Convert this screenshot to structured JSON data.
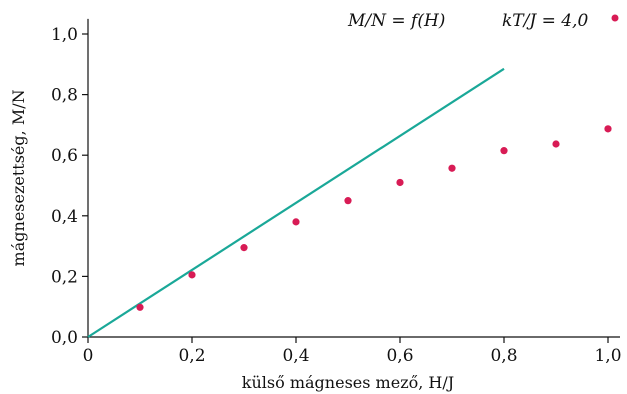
{
  "chart_data": {
    "type": "scatter",
    "xlabel": "külső mágneses mező, H/J",
    "ylabel": "mágnesezettség, M/N",
    "xlim": [
      0,
      1.0
    ],
    "ylim": [
      0,
      1.05
    ],
    "x_ticks": [
      "0",
      "0,2",
      "0,4",
      "0,6",
      "0,8",
      "1,0"
    ],
    "x_tick_values": [
      0,
      0.2,
      0.4,
      0.6,
      0.8,
      1.0
    ],
    "y_ticks": [
      "0,0",
      "0,2",
      "0,4",
      "0,6",
      "0,8",
      "1,0"
    ],
    "y_tick_values": [
      0,
      0.2,
      0.4,
      0.6,
      0.8,
      1.0
    ],
    "grid": false,
    "legend_position": "top-right",
    "series": [
      {
        "name": "M/N = f(H)",
        "kind": "line",
        "color": "#1aa898",
        "x": [
          0,
          0.8
        ],
        "y": [
          0,
          0.885
        ]
      },
      {
        "name": "kT/J = 4,0",
        "kind": "scatter",
        "color": "#d81b55",
        "x": [
          0.1,
          0.2,
          0.3,
          0.4,
          0.5,
          0.6,
          0.7,
          0.8,
          0.9,
          1.0
        ],
        "y": [
          0.098,
          0.205,
          0.295,
          0.38,
          0.45,
          0.51,
          0.557,
          0.615,
          0.637,
          0.687
        ]
      }
    ]
  }
}
